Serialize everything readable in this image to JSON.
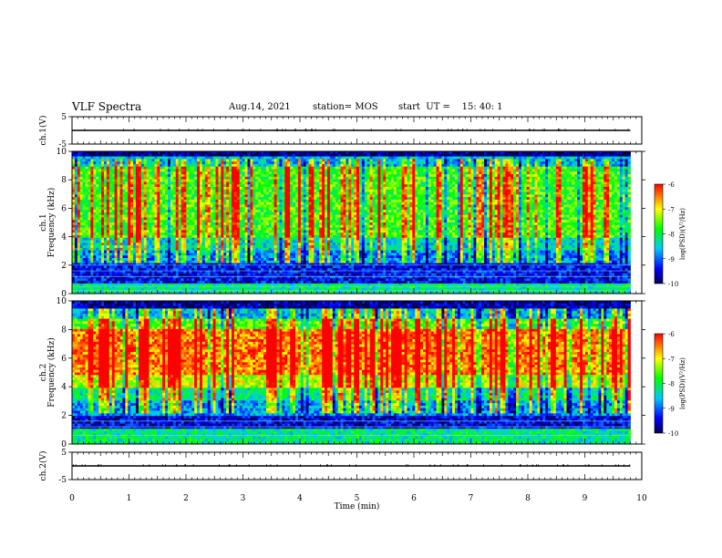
{
  "header": {
    "title": "VLF Spectra",
    "date": "Aug.14, 2021",
    "station": "station= MOS",
    "start": "start  UT =    15: 40: 1"
  },
  "colors": {
    "spectrogram_low": "#000050",
    "spectrogram_mid": "#00ff00",
    "spectrogram_high": "#ff0000"
  },
  "chart_data": [
    {
      "type": "line",
      "ylabel": "ch.1(V)",
      "yticks": [
        "5",
        "-5"
      ],
      "ylim": [
        -5,
        5
      ],
      "x": [
        0,
        9.8
      ],
      "values": [
        0,
        0
      ]
    },
    {
      "type": "heatmap",
      "ylabel_line1": "ch.1",
      "ylabel_line2": "Frequency (kHz)",
      "yticks": [
        "0",
        "2",
        "4",
        "6",
        "8",
        "10"
      ],
      "ylim": [
        0,
        10
      ],
      "xlim": [
        0,
        10
      ],
      "data_xmax": 9.8,
      "colorbar": {
        "label": "log(PSD)(V²/Hz)",
        "ticks": [
          "-6",
          "-7",
          "-8",
          "-9",
          "-10"
        ],
        "range": [
          -10,
          -6
        ]
      }
    },
    {
      "type": "heatmap",
      "ylabel_line1": "ch.2",
      "ylabel_line2": "Frequency (kHz)",
      "yticks": [
        "0",
        "2",
        "4",
        "6",
        "8",
        "10"
      ],
      "ylim": [
        0,
        10
      ],
      "xlim": [
        0,
        10
      ],
      "data_xmax": 9.8,
      "colorbar": {
        "label": "log(PSD)(V²/Hz)",
        "ticks": [
          "-6",
          "-7",
          "-8",
          "-9",
          "-10"
        ],
        "range": [
          -10,
          -6
        ]
      }
    },
    {
      "type": "line",
      "ylabel": "ch.2(V)",
      "yticks": [
        "5",
        "-5"
      ],
      "ylim": [
        -5,
        5
      ],
      "x": [
        0,
        9.8
      ],
      "values": [
        0,
        0
      ]
    }
  ],
  "xaxis": {
    "label": "Time  (min)",
    "ticks": [
      "0",
      "1",
      "2",
      "3",
      "4",
      "5",
      "6",
      "7",
      "8",
      "9",
      "10"
    ],
    "range": [
      0,
      10
    ]
  }
}
